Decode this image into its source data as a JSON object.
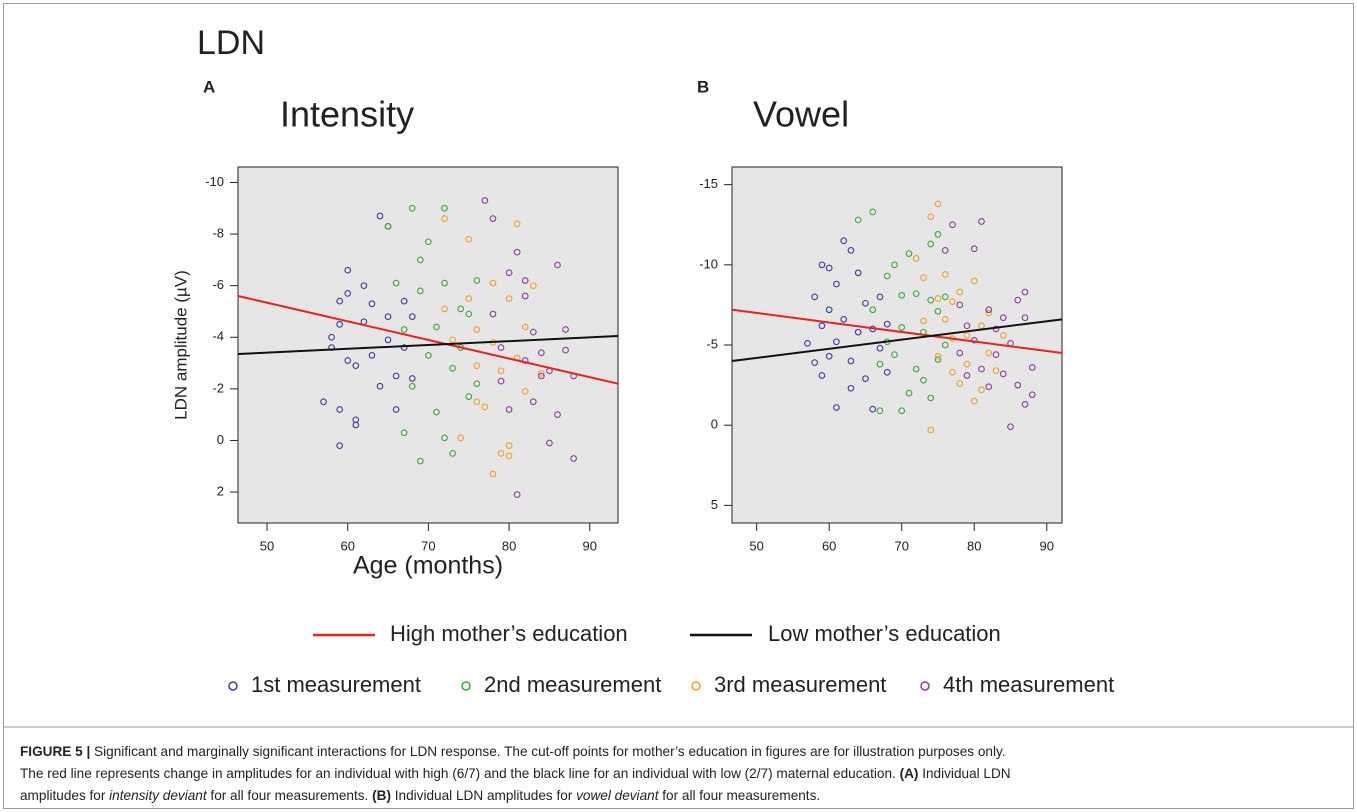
{
  "chart_data": [
    {
      "type": "scatter",
      "panel": "A",
      "title": "Intensity",
      "xlabel": "Age (months)",
      "ylabel": "LDN amplitude (µV)",
      "xlim": [
        46.4,
        93.5
      ],
      "xticks": [
        50,
        60,
        70,
        80,
        90
      ],
      "ylim": [
        -10.6,
        3.2
      ],
      "y_inverted": true,
      "yticks": [
        -10,
        -8,
        -6,
        -4,
        -2,
        0,
        2
      ],
      "series": [
        {
          "name": "1st measurement",
          "color": "#3c3c9c",
          "x": [
            57,
            58,
            58,
            59,
            59,
            59,
            60,
            60,
            60,
            61,
            61,
            62,
            62,
            63,
            64,
            64,
            65,
            65,
            66,
            66,
            67,
            67,
            68,
            68,
            59,
            61,
            63,
            65
          ],
          "values": [
            -1.5,
            -3.6,
            -4.0,
            -5.4,
            -4.5,
            0.2,
            -3.1,
            -6.6,
            -5.7,
            -0.8,
            -2.9,
            -6.0,
            -4.6,
            -3.3,
            -8.7,
            -2.1,
            -8.3,
            -4.8,
            -2.5,
            -1.2,
            -3.6,
            -5.4,
            -4.8,
            -2.4,
            -1.2,
            -0.6,
            -5.3,
            -3.9
          ]
        },
        {
          "name": "2nd measurement",
          "color": "#3aa83a",
          "x": [
            65,
            66,
            67,
            67,
            68,
            68,
            69,
            69,
            70,
            70,
            71,
            71,
            72,
            72,
            73,
            73,
            74,
            74,
            75,
            75,
            76,
            76,
            69,
            72
          ],
          "values": [
            -8.3,
            -6.1,
            -4.3,
            -0.3,
            -9.0,
            -2.1,
            -7.0,
            -5.8,
            -7.7,
            -3.3,
            -1.1,
            -4.4,
            -9.0,
            -6.1,
            -2.8,
            0.5,
            -5.1,
            -3.6,
            -1.7,
            -4.9,
            -6.2,
            -2.2,
            0.8,
            -0.1
          ]
        },
        {
          "name": "3rd measurement",
          "color": "#f0a028",
          "x": [
            72,
            72,
            73,
            74,
            75,
            75,
            76,
            76,
            77,
            78,
            78,
            79,
            79,
            80,
            80,
            81,
            81,
            82,
            82,
            83,
            84,
            80,
            78,
            76
          ],
          "values": [
            -8.6,
            -5.1,
            -3.9,
            -0.1,
            -7.8,
            -5.5,
            -2.9,
            -4.3,
            -1.3,
            -6.1,
            -3.8,
            0.5,
            -2.7,
            -5.5,
            0.2,
            -8.4,
            -3.2,
            -4.4,
            -1.9,
            -6.0,
            -2.6,
            0.6,
            1.3,
            -1.5
          ]
        },
        {
          "name": "4th measurement",
          "color": "#8c3c9c",
          "x": [
            77,
            78,
            78,
            79,
            79,
            80,
            80,
            81,
            81,
            82,
            82,
            83,
            83,
            84,
            84,
            85,
            85,
            86,
            86,
            87,
            87,
            88,
            88,
            82
          ],
          "values": [
            -9.3,
            -8.6,
            -4.9,
            -2.3,
            -3.6,
            -6.5,
            -1.2,
            -7.3,
            2.1,
            -5.6,
            -3.1,
            -4.2,
            -1.5,
            -3.4,
            -2.5,
            0.1,
            -2.7,
            -6.8,
            -1.0,
            -4.3,
            -3.5,
            0.7,
            -2.5,
            -6.2
          ]
        }
      ],
      "lines": [
        {
          "name": "High mother’s education",
          "color": "#e8231f",
          "x": [
            46.4,
            93.5
          ],
          "values": [
            -5.6,
            -2.2
          ]
        },
        {
          "name": "Low mother’s education",
          "color": "#111111",
          "x": [
            46.4,
            93.5
          ],
          "values": [
            -3.35,
            -4.05
          ]
        }
      ]
    },
    {
      "type": "scatter",
      "panel": "B",
      "title": "Vowel",
      "xlim": [
        46.6,
        92.1
      ],
      "xticks": [
        50,
        60,
        70,
        80,
        90
      ],
      "ylim": [
        -16.1,
        6.1
      ],
      "y_inverted": true,
      "yticks": [
        -15,
        -10,
        -5,
        0,
        5
      ],
      "series": [
        {
          "color": "#3c3c9c",
          "x": [
            57,
            58,
            58,
            59,
            59,
            59,
            60,
            60,
            60,
            61,
            61,
            62,
            62,
            63,
            63,
            64,
            64,
            65,
            65,
            66,
            66,
            67,
            67,
            68,
            68,
            61,
            63
          ],
          "values": [
            -5.1,
            -8.0,
            -3.9,
            -10.0,
            -6.2,
            -3.1,
            -9.8,
            -7.2,
            -4.3,
            -8.8,
            -1.1,
            -11.5,
            -6.6,
            -10.9,
            -4.0,
            -9.5,
            -5.8,
            -7.6,
            -2.9,
            -6.0,
            -1.0,
            -8.0,
            -4.8,
            -6.3,
            -3.3,
            -5.2,
            -2.3
          ]
        },
        {
          "color": "#3aa83a",
          "x": [
            64,
            66,
            66,
            67,
            67,
            68,
            68,
            69,
            69,
            70,
            70,
            71,
            71,
            72,
            72,
            73,
            74,
            74,
            74,
            75,
            75,
            75,
            76,
            76,
            73,
            70
          ],
          "values": [
            -12.8,
            -13.3,
            -7.2,
            -3.8,
            -0.9,
            -9.3,
            -5.2,
            -10.0,
            -4.4,
            -8.1,
            -6.1,
            -2.0,
            -10.7,
            -8.2,
            -3.5,
            -5.8,
            -11.3,
            -7.8,
            -1.7,
            -11.9,
            -7.1,
            -4.1,
            -8.0,
            -5.0,
            -2.8,
            -0.9
          ]
        },
        {
          "color": "#f0a028",
          "x": [
            72,
            73,
            73,
            74,
            74,
            75,
            75,
            75,
            76,
            76,
            77,
            77,
            78,
            78,
            79,
            79,
            80,
            80,
            81,
            81,
            82,
            82,
            83,
            84,
            77
          ],
          "values": [
            -10.4,
            -9.2,
            -6.5,
            -13.0,
            0.3,
            -13.8,
            -7.9,
            -4.3,
            -9.4,
            -6.6,
            -5.4,
            -7.7,
            -8.3,
            -2.6,
            -5.6,
            -3.8,
            -9.0,
            -1.5,
            -6.2,
            -2.2,
            -7.0,
            -4.5,
            -3.4,
            -5.6,
            -3.3
          ]
        },
        {
          "color": "#8c3c9c",
          "x": [
            76,
            77,
            78,
            78,
            79,
            79,
            80,
            80,
            81,
            81,
            82,
            82,
            83,
            83,
            84,
            84,
            85,
            85,
            86,
            86,
            87,
            87,
            88,
            88,
            87
          ],
          "values": [
            -10.9,
            -12.5,
            -7.5,
            -4.5,
            -6.2,
            -3.1,
            -11.0,
            -5.3,
            -12.7,
            -3.5,
            -7.2,
            -2.4,
            -6.0,
            -4.4,
            -6.7,
            -3.2,
            0.1,
            -5.1,
            -7.8,
            -2.5,
            -8.3,
            -1.3,
            -3.6,
            -1.9,
            -6.7
          ]
        }
      ],
      "lines": [
        {
          "color": "#e8231f",
          "x": [
            46.6,
            92.1
          ],
          "values": [
            -7.2,
            -4.5
          ]
        },
        {
          "color": "#111111",
          "x": [
            46.6,
            92.1
          ],
          "values": [
            -4.0,
            -6.6
          ]
        }
      ]
    }
  ],
  "figure_title": "LDN",
  "caption": [
    [
      {
        "text": "FIGURE 5 |",
        "style": "bold"
      },
      {
        "text": " Significant and marginally significant interactions for LDN response. The cut-off points for mother’s education in figures are for illustration purposes only.",
        "style": "normal"
      }
    ],
    [
      {
        "text": "The red line represents change in amplitudes for an individual with high (6/7) and the black line for an individual with low (2/7) maternal education. ",
        "style": "normal"
      },
      {
        "text": "(A)",
        "style": "bold"
      },
      {
        "text": " Individual LDN",
        "style": "normal"
      }
    ],
    [
      {
        "text": "amplitudes for ",
        "style": "normal"
      },
      {
        "text": "intensity deviant",
        "style": "italic"
      },
      {
        "text": " for all four measurements. ",
        "style": "normal"
      },
      {
        "text": "(B)",
        "style": "bold"
      },
      {
        "text": " Individual LDN amplitudes for ",
        "style": "normal"
      },
      {
        "text": "vowel deviant",
        "style": "italic"
      },
      {
        "text": " for all four measurements.",
        "style": "normal"
      }
    ]
  ]
}
